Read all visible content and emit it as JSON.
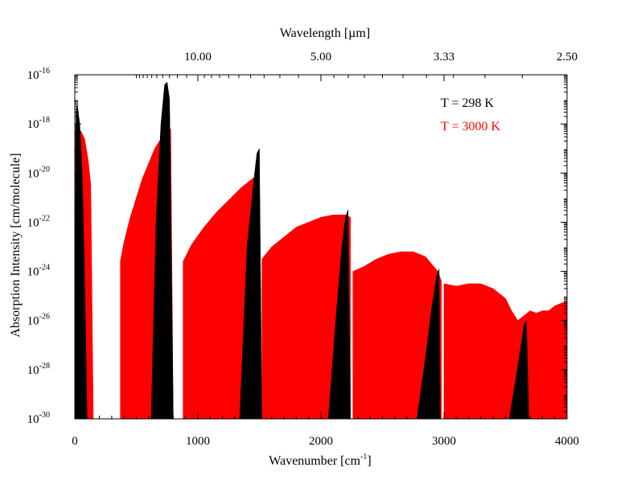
{
  "chart_data": {
    "type": "area",
    "xlabel": "Wavenumber [cm",
    "xlabel_sup": "-1",
    "xlabel_end": "]",
    "ylabel": "Absorption Intensity [cm/molecule]",
    "top_xlabel": "Wavelength [µm]",
    "xlim": [
      0,
      4000
    ],
    "ylim_log10": [
      -30,
      -16
    ],
    "y_scale": "log",
    "x_ticks": [
      0,
      1000,
      2000,
      3000,
      4000
    ],
    "x_tick_labels": [
      "0",
      "1000",
      "2000",
      "3000",
      "4000"
    ],
    "top_ticks_wavenumber": [
      1000,
      2000,
      3000,
      4000
    ],
    "top_tick_labels": [
      "10.00",
      "5.00",
      "3.33",
      "2.50"
    ],
    "y_tick_exponents": [
      -30,
      -28,
      -26,
      -24,
      -22,
      -20,
      -18,
      -16
    ],
    "y_tick_base": "10",
    "y_tick_sups": [
      "-30",
      "-28",
      "-26",
      "-24",
      "-22",
      "-20",
      "-18",
      "-16"
    ],
    "legend_position": "top-right",
    "series": [
      {
        "name": "T = 3000 K",
        "color": "#ff0000",
        "bands": [
          {
            "x": [
              0,
              20,
              50,
              80,
              110,
              130,
              150
            ],
            "log10y": [
              -18.3,
              -18.2,
              -18.3,
              -18.6,
              -19.5,
              -20.5,
              -30
            ]
          },
          {
            "x": [
              370,
              400,
              450,
              500,
              550,
              600,
              650,
              700,
              750,
              780,
              800
            ],
            "log10y": [
              -23.6,
              -22.8,
              -21.8,
              -21.0,
              -20.2,
              -19.6,
              -19.0,
              -18.6,
              -18.3,
              -18.2,
              -30
            ]
          },
          {
            "x": [
              880,
              950,
              1050,
              1150,
              1250,
              1350,
              1450,
              1500
            ],
            "log10y": [
              -23.6,
              -22.9,
              -22.2,
              -21.6,
              -21.1,
              -20.6,
              -20.2,
              -20.1
            ]
          },
          {
            "x": [
              1520,
              1600,
              1700,
              1800,
              1900,
              2000,
              2100,
              2200,
              2240
            ],
            "log10y": [
              -23.5,
              -23.0,
              -22.6,
              -22.2,
              -22.0,
              -21.8,
              -21.7,
              -21.7,
              -21.8
            ]
          },
          {
            "x": [
              2260,
              2350,
              2450,
              2550,
              2650,
              2750,
              2850,
              2950,
              2980
            ],
            "log10y": [
              -24.0,
              -23.8,
              -23.5,
              -23.3,
              -23.2,
              -23.2,
              -23.4,
              -24.0,
              -24.4
            ]
          },
          {
            "x": [
              3000,
              3100,
              3200,
              3300,
              3400,
              3500,
              3550,
              3600
            ],
            "log10y": [
              -24.5,
              -24.6,
              -24.5,
              -24.5,
              -24.7,
              -25.1,
              -25.6,
              -26.0
            ]
          },
          {
            "x": [
              3600,
              3650,
              3700,
              3750,
              3800,
              3850,
              3900,
              3950,
              4000
            ],
            "log10y": [
              -26.0,
              -25.8,
              -25.6,
              -25.7,
              -25.6,
              -25.6,
              -25.4,
              -25.3,
              -25.2
            ]
          }
        ]
      },
      {
        "name": "T = 298 K",
        "color": "#000000",
        "bands": [
          {
            "x": [
              0,
              10,
              20,
              40,
              60,
              80,
              100
            ],
            "log10y": [
              -30,
              -17.5,
              -17.2,
              -18.0,
              -20.0,
              -24.0,
              -30
            ]
          },
          {
            "x": [
              620,
              660,
              700,
              730,
              750,
              770,
              800
            ],
            "log10y": [
              -30,
              -22.0,
              -18.0,
              -16.4,
              -16.3,
              -17.0,
              -30
            ]
          },
          {
            "x": [
              1340,
              1400,
              1450,
              1480,
              1500,
              1520
            ],
            "log10y": [
              -30,
              -23.0,
              -20.5,
              -19.2,
              -19.0,
              -30
            ]
          },
          {
            "x": [
              2060,
              2120,
              2170,
              2200,
              2220,
              2240
            ],
            "log10y": [
              -30,
              -26.0,
              -23.0,
              -21.8,
              -21.5,
              -30
            ]
          },
          {
            "x": [
              2780,
              2850,
              2900,
              2940,
              2960,
              2970
            ],
            "log10y": [
              -30,
              -27.5,
              -25.5,
              -24.2,
              -23.9,
              -30
            ]
          },
          {
            "x": [
              3530,
              3580,
              3620,
              3650,
              3670,
              3690
            ],
            "log10y": [
              -30,
              -28.5,
              -27.2,
              -26.2,
              -26.0,
              -30
            ]
          }
        ]
      }
    ]
  }
}
